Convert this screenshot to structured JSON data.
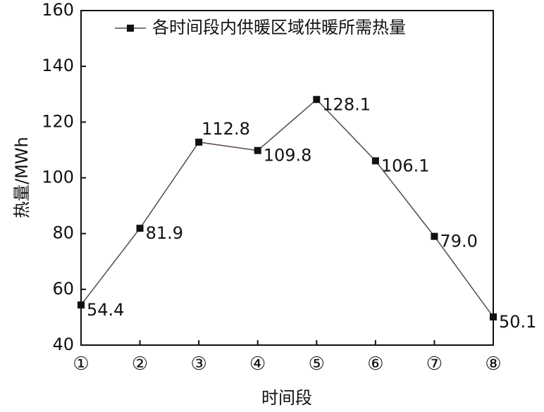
{
  "chart_data": {
    "type": "line",
    "legend_label": "各时间段内供暖区域供暖所需热量",
    "x_label": "时间段",
    "y_label": "热量/MWh",
    "categories": [
      "①",
      "②",
      "③",
      "④",
      "⑤",
      "⑥",
      "⑦",
      "⑧"
    ],
    "values": [
      54.4,
      81.9,
      112.8,
      109.8,
      128.1,
      106.1,
      79.0,
      50.1
    ],
    "value_labels": [
      "54.4",
      "81.9",
      "112.8",
      "109.8",
      "128.1",
      "106.1",
      "79.0",
      "50.1"
    ],
    "color": "#5a4848",
    "marker_color": "#111111",
    "ylim": [
      40,
      160
    ],
    "yticks": [
      40,
      60,
      80,
      100,
      120,
      140,
      160
    ],
    "legend": "upper right"
  }
}
